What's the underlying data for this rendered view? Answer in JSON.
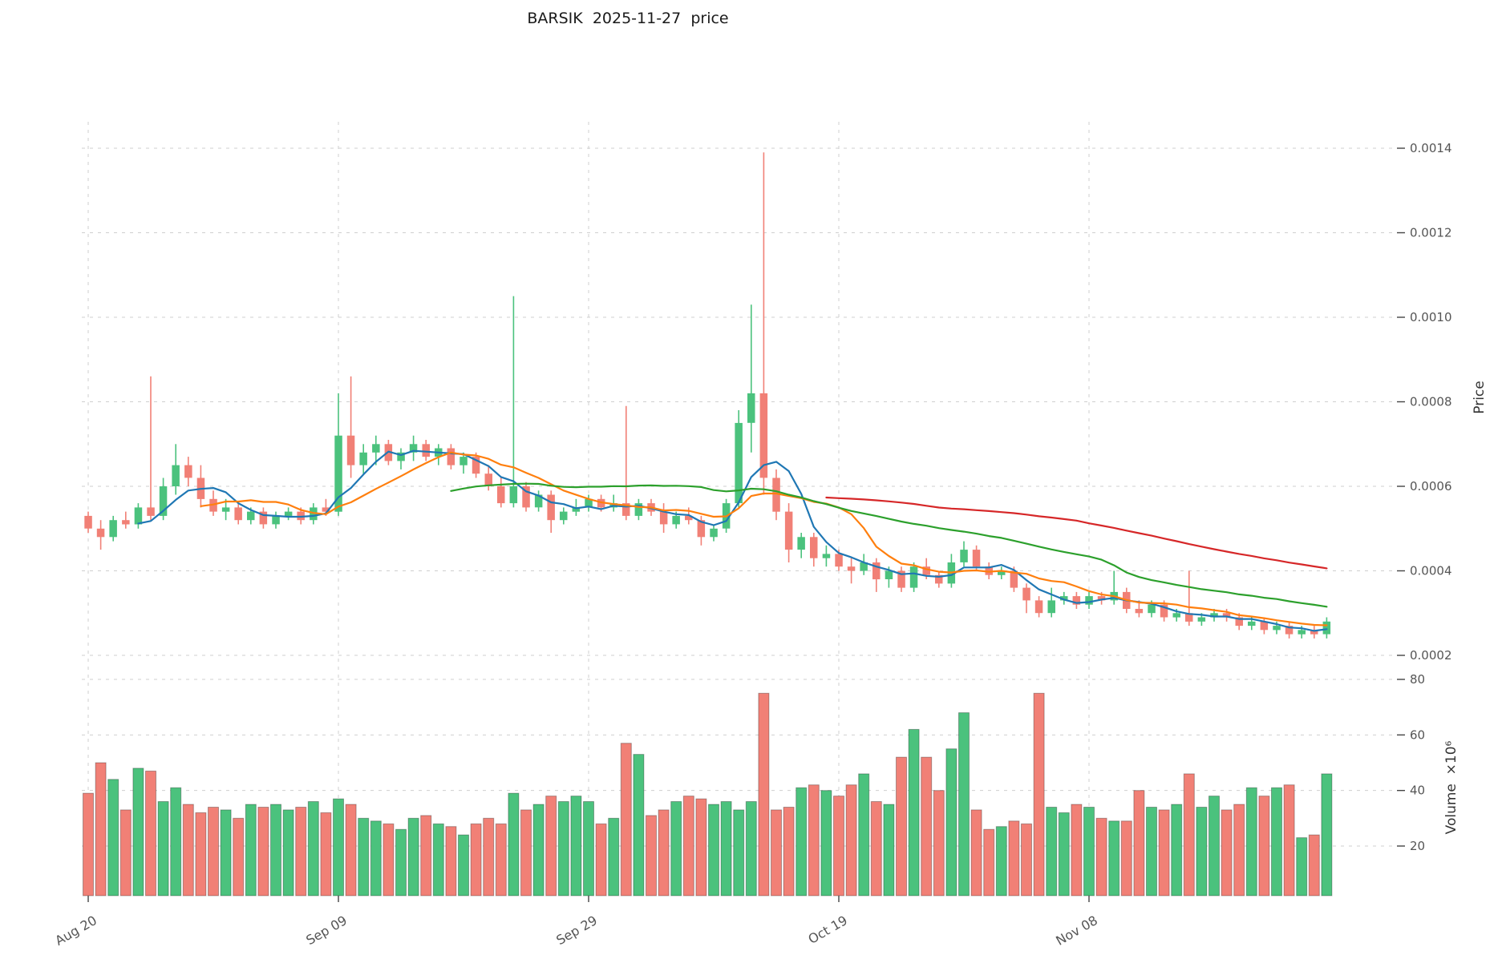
{
  "title": "BARSIK  2025-11-27  price",
  "price_axis": {
    "label": "Price"
  },
  "volume_axis": {
    "label": "Volume  ×10⁶"
  },
  "colors": {
    "up": "#4bc27d",
    "down": "#f18076",
    "ma_short": "#1f77b4",
    "ma_mid": "#ff7f0e",
    "ma_long": "#2ca02c",
    "ma_longest": "#d62728",
    "grid": "#cfcfcf",
    "tick_text": "#555555",
    "tick_mark": "#444444",
    "bar_edge": "rgba(0,0,0,0.3)"
  },
  "chart_data": {
    "type": "candlestick+volume",
    "title": "BARSIK  2025-11-27  price",
    "ylabel": "Price",
    "ylabel2": "Volume ×10⁶",
    "price_ylim": [
      0.0002,
      0.0014
    ],
    "volume_ylim": [
      0,
      85
    ],
    "grid": "dashed",
    "legend": "none",
    "price_ticks": [
      {
        "value": 0.0002,
        "label": "0.0002"
      },
      {
        "value": 0.0004,
        "label": "0.0004"
      },
      {
        "value": 0.0006,
        "label": "0.0006"
      },
      {
        "value": 0.0008,
        "label": "0.0008"
      },
      {
        "value": 0.001,
        "label": "0.0010"
      },
      {
        "value": 0.0012,
        "label": "0.0012"
      },
      {
        "value": 0.0014,
        "label": "0.0014"
      }
    ],
    "volume_ticks": [
      {
        "value": 20,
        "label": "20"
      },
      {
        "value": 40,
        "label": "40"
      },
      {
        "value": 60,
        "label": "60"
      },
      {
        "value": 80,
        "label": "80"
      }
    ],
    "x_ticks": [
      {
        "index": 0,
        "label": "Aug 20"
      },
      {
        "index": 20,
        "label": "Sep 09"
      },
      {
        "index": 40,
        "label": "Sep 29"
      },
      {
        "index": 60,
        "label": "Oct 19"
      },
      {
        "index": 80,
        "label": "Nov 08"
      }
    ],
    "overlays": [
      {
        "name": "MA5",
        "window": 5,
        "color": "#1f77b4"
      },
      {
        "name": "MA10",
        "window": 10,
        "color": "#ff7f0e"
      },
      {
        "name": "MA30",
        "window": 30,
        "color": "#2ca02c"
      },
      {
        "name": "MA60",
        "window": 60,
        "color": "#d62728"
      }
    ],
    "columns": [
      "date",
      "open",
      "high",
      "low",
      "close",
      "volume_millions"
    ],
    "candles": [
      [
        "2025-08-20",
        0.00053,
        0.00054,
        0.00049,
        0.0005,
        39
      ],
      [
        "2025-08-21",
        0.0005,
        0.00052,
        0.00045,
        0.00048,
        50
      ],
      [
        "2025-08-22",
        0.00048,
        0.00053,
        0.00047,
        0.00052,
        44
      ],
      [
        "2025-08-23",
        0.00052,
        0.00054,
        0.0005,
        0.00051,
        33
      ],
      [
        "2025-08-24",
        0.00051,
        0.00056,
        0.0005,
        0.00055,
        48
      ],
      [
        "2025-08-25",
        0.00055,
        0.00086,
        0.00052,
        0.00053,
        47
      ],
      [
        "2025-08-26",
        0.00053,
        0.00062,
        0.00052,
        0.0006,
        36
      ],
      [
        "2025-08-27",
        0.0006,
        0.0007,
        0.00058,
        0.00065,
        41
      ],
      [
        "2025-08-28",
        0.00065,
        0.00067,
        0.0006,
        0.00062,
        35
      ],
      [
        "2025-08-29",
        0.00062,
        0.00065,
        0.00055,
        0.00057,
        32
      ],
      [
        "2025-08-30",
        0.00057,
        0.00059,
        0.00053,
        0.00054,
        34
      ],
      [
        "2025-08-31",
        0.00054,
        0.00057,
        0.00052,
        0.00055,
        33
      ],
      [
        "2025-09-01",
        0.00055,
        0.00056,
        0.00051,
        0.00052,
        30
      ],
      [
        "2025-09-02",
        0.00052,
        0.00055,
        0.00051,
        0.00054,
        35
      ],
      [
        "2025-09-03",
        0.00054,
        0.00055,
        0.0005,
        0.00051,
        34
      ],
      [
        "2025-09-04",
        0.00051,
        0.00054,
        0.0005,
        0.00053,
        35
      ],
      [
        "2025-09-05",
        0.00053,
        0.00055,
        0.00052,
        0.00054,
        33
      ],
      [
        "2025-09-06",
        0.00054,
        0.00055,
        0.00051,
        0.00052,
        34
      ],
      [
        "2025-09-07",
        0.00052,
        0.00056,
        0.00051,
        0.00055,
        36
      ],
      [
        "2025-09-08",
        0.00055,
        0.00057,
        0.00053,
        0.00054,
        32
      ],
      [
        "2025-09-09",
        0.00054,
        0.00082,
        0.00053,
        0.00072,
        37
      ],
      [
        "2025-09-10",
        0.00072,
        0.00086,
        0.00062,
        0.00065,
        35
      ],
      [
        "2025-09-11",
        0.00065,
        0.0007,
        0.00063,
        0.00068,
        30
      ],
      [
        "2025-09-12",
        0.00068,
        0.00072,
        0.00065,
        0.0007,
        29
      ],
      [
        "2025-09-13",
        0.0007,
        0.00071,
        0.00065,
        0.00066,
        28
      ],
      [
        "2025-09-14",
        0.00066,
        0.00069,
        0.00064,
        0.00068,
        26
      ],
      [
        "2025-09-15",
        0.00068,
        0.00072,
        0.00066,
        0.0007,
        30
      ],
      [
        "2025-09-16",
        0.0007,
        0.00071,
        0.00066,
        0.00067,
        31
      ],
      [
        "2025-09-17",
        0.00067,
        0.0007,
        0.00065,
        0.00069,
        28
      ],
      [
        "2025-09-18",
        0.00069,
        0.0007,
        0.00064,
        0.00065,
        27
      ],
      [
        "2025-09-19",
        0.00065,
        0.00068,
        0.00063,
        0.00067,
        24
      ],
      [
        "2025-09-20",
        0.00067,
        0.00068,
        0.00062,
        0.00063,
        28
      ],
      [
        "2025-09-21",
        0.00063,
        0.00065,
        0.00059,
        0.0006,
        30
      ],
      [
        "2025-09-22",
        0.0006,
        0.00062,
        0.00055,
        0.00056,
        28
      ],
      [
        "2025-09-23",
        0.00056,
        0.00105,
        0.00055,
        0.0006,
        39
      ],
      [
        "2025-09-24",
        0.0006,
        0.00061,
        0.00054,
        0.00055,
        33
      ],
      [
        "2025-09-25",
        0.00055,
        0.00059,
        0.00054,
        0.00058,
        35
      ],
      [
        "2025-09-26",
        0.00058,
        0.00059,
        0.00049,
        0.00052,
        38
      ],
      [
        "2025-09-27",
        0.00052,
        0.00055,
        0.00051,
        0.00054,
        36
      ],
      [
        "2025-09-28",
        0.00054,
        0.00057,
        0.00053,
        0.00055,
        38
      ],
      [
        "2025-09-29",
        0.00055,
        0.00058,
        0.00054,
        0.00057,
        36
      ],
      [
        "2025-09-30",
        0.00057,
        0.00058,
        0.00054,
        0.00055,
        28
      ],
      [
        "2025-10-01",
        0.00055,
        0.00058,
        0.00054,
        0.00056,
        30
      ],
      [
        "2025-10-02",
        0.00056,
        0.00079,
        0.00052,
        0.00053,
        57
      ],
      [
        "2025-10-03",
        0.00053,
        0.00057,
        0.00052,
        0.00056,
        53
      ],
      [
        "2025-10-04",
        0.00056,
        0.00057,
        0.00053,
        0.00054,
        31
      ],
      [
        "2025-10-05",
        0.00054,
        0.00056,
        0.00049,
        0.00051,
        33
      ],
      [
        "2025-10-06",
        0.00051,
        0.00054,
        0.0005,
        0.00053,
        36
      ],
      [
        "2025-10-07",
        0.00053,
        0.00055,
        0.00051,
        0.00052,
        38
      ],
      [
        "2025-10-08",
        0.00052,
        0.00053,
        0.00046,
        0.00048,
        37
      ],
      [
        "2025-10-09",
        0.00048,
        0.00051,
        0.00047,
        0.0005,
        35
      ],
      [
        "2025-10-10",
        0.0005,
        0.00057,
        0.00049,
        0.00056,
        36
      ],
      [
        "2025-10-11",
        0.00056,
        0.00078,
        0.00055,
        0.00075,
        33
      ],
      [
        "2025-10-12",
        0.00075,
        0.00103,
        0.00068,
        0.00082,
        36
      ],
      [
        "2025-10-13",
        0.00082,
        0.00139,
        0.00058,
        0.00062,
        75
      ],
      [
        "2025-10-14",
        0.00062,
        0.00064,
        0.00052,
        0.00054,
        33
      ],
      [
        "2025-10-15",
        0.00054,
        0.00056,
        0.00042,
        0.00045,
        34
      ],
      [
        "2025-10-16",
        0.00045,
        0.00049,
        0.00043,
        0.00048,
        41
      ],
      [
        "2025-10-17",
        0.00048,
        0.00049,
        0.00041,
        0.00043,
        42
      ],
      [
        "2025-10-18",
        0.00043,
        0.00046,
        0.00041,
        0.00044,
        40
      ],
      [
        "2025-10-19",
        0.00044,
        0.00045,
        0.0004,
        0.00041,
        38
      ],
      [
        "2025-10-20",
        0.00041,
        0.00043,
        0.00037,
        0.0004,
        42
      ],
      [
        "2025-10-21",
        0.0004,
        0.00044,
        0.00039,
        0.00042,
        46
      ],
      [
        "2025-10-22",
        0.00042,
        0.00043,
        0.00035,
        0.00038,
        36
      ],
      [
        "2025-10-23",
        0.00038,
        0.00041,
        0.00036,
        0.0004,
        35
      ],
      [
        "2025-10-24",
        0.0004,
        0.00041,
        0.00035,
        0.00036,
        52
      ],
      [
        "2025-10-25",
        0.00036,
        0.00042,
        0.00035,
        0.00041,
        62
      ],
      [
        "2025-10-26",
        0.00041,
        0.00043,
        0.00038,
        0.00039,
        52
      ],
      [
        "2025-10-27",
        0.00039,
        0.0004,
        0.00036,
        0.00037,
        40
      ],
      [
        "2025-10-28",
        0.00037,
        0.00044,
        0.00036,
        0.00042,
        55
      ],
      [
        "2025-10-29",
        0.00042,
        0.00047,
        0.00041,
        0.00045,
        68
      ],
      [
        "2025-10-30",
        0.00045,
        0.00046,
        0.0004,
        0.00041,
        33
      ],
      [
        "2025-10-31",
        0.00041,
        0.00042,
        0.00038,
        0.00039,
        26
      ],
      [
        "2025-11-01",
        0.00039,
        0.00041,
        0.00038,
        0.0004,
        27
      ],
      [
        "2025-11-02",
        0.0004,
        0.00041,
        0.00035,
        0.00036,
        29
      ],
      [
        "2025-11-03",
        0.00036,
        0.00037,
        0.0003,
        0.00033,
        28
      ],
      [
        "2025-11-04",
        0.00033,
        0.00034,
        0.00029,
        0.0003,
        75
      ],
      [
        "2025-11-05",
        0.0003,
        0.00036,
        0.00029,
        0.00033,
        34
      ],
      [
        "2025-11-06",
        0.00033,
        0.00035,
        0.00032,
        0.00034,
        32
      ],
      [
        "2025-11-07",
        0.00034,
        0.00035,
        0.00031,
        0.00032,
        35
      ],
      [
        "2025-11-08",
        0.00032,
        0.00035,
        0.00031,
        0.00034,
        34
      ],
      [
        "2025-11-09",
        0.00034,
        0.00035,
        0.00032,
        0.00033,
        30
      ],
      [
        "2025-11-10",
        0.00033,
        0.0004,
        0.00032,
        0.00035,
        29
      ],
      [
        "2025-11-11",
        0.00035,
        0.00036,
        0.0003,
        0.00031,
        29
      ],
      [
        "2025-11-12",
        0.00031,
        0.00033,
        0.00029,
        0.0003,
        40
      ],
      [
        "2025-11-13",
        0.0003,
        0.00033,
        0.00029,
        0.00032,
        34
      ],
      [
        "2025-11-14",
        0.00032,
        0.00033,
        0.00028,
        0.00029,
        33
      ],
      [
        "2025-11-15",
        0.00029,
        0.00031,
        0.00028,
        0.0003,
        35
      ],
      [
        "2025-11-16",
        0.0003,
        0.0004,
        0.00027,
        0.00028,
        46
      ],
      [
        "2025-11-17",
        0.00028,
        0.0003,
        0.00027,
        0.00029,
        34
      ],
      [
        "2025-11-18",
        0.00029,
        0.00031,
        0.00028,
        0.0003,
        38
      ],
      [
        "2025-11-19",
        0.0003,
        0.00031,
        0.00028,
        0.00029,
        33
      ],
      [
        "2025-11-20",
        0.00029,
        0.0003,
        0.00026,
        0.00027,
        35
      ],
      [
        "2025-11-21",
        0.00027,
        0.00029,
        0.00026,
        0.00028,
        41
      ],
      [
        "2025-11-22",
        0.00028,
        0.00029,
        0.00025,
        0.00026,
        38
      ],
      [
        "2025-11-23",
        0.00026,
        0.00028,
        0.00025,
        0.00027,
        41
      ],
      [
        "2025-11-24",
        0.00027,
        0.00028,
        0.00024,
        0.00025,
        42
      ],
      [
        "2025-11-25",
        0.00025,
        0.00027,
        0.00024,
        0.00026,
        23
      ],
      [
        "2025-11-26",
        0.00026,
        0.00027,
        0.00024,
        0.00025,
        24
      ],
      [
        "2025-11-27",
        0.00025,
        0.00029,
        0.00024,
        0.00028,
        46
      ]
    ]
  }
}
